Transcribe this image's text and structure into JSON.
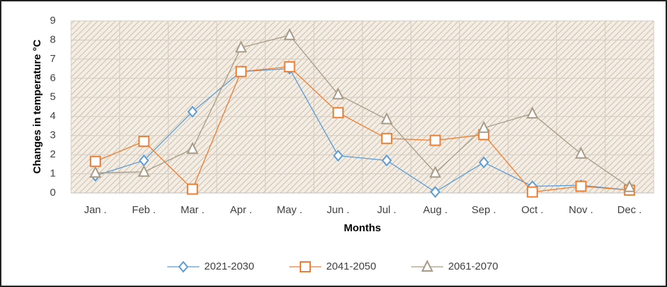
{
  "chart_data": {
    "type": "line",
    "x_label": "Months",
    "y_label": "Changes in temperature °C",
    "categories": [
      "Jan .",
      "Feb .",
      "Mar .",
      "Apr .",
      "May .",
      "Jun .",
      "Jul .",
      "Aug .",
      "Sep .",
      "Oct .",
      "Nov .",
      "Dec ."
    ],
    "series": [
      {
        "name": "2021-2030",
        "color": "#5b9bd5",
        "marker": "diamond",
        "values": [
          0.9,
          1.7,
          4.25,
          6.35,
          6.5,
          1.95,
          1.7,
          0.05,
          1.6,
          0.35,
          0.4,
          0.15
        ]
      },
      {
        "name": "2041-2050",
        "color": "#ed7d31",
        "marker": "square",
        "values": [
          1.65,
          2.7,
          0.2,
          6.35,
          6.6,
          4.2,
          2.85,
          2.75,
          3.05,
          0.05,
          0.35,
          0.15
        ]
      },
      {
        "name": "2061-2070",
        "color": "#a89b85",
        "marker": "triangle",
        "values": [
          1.05,
          1.1,
          2.3,
          7.6,
          8.25,
          5.15,
          3.85,
          1.05,
          3.4,
          4.15,
          2.05,
          0.3
        ]
      }
    ],
    "ylim": [
      0,
      9
    ],
    "yticks": [
      0,
      1,
      2,
      3,
      4,
      5,
      6,
      7,
      8,
      9
    ],
    "grid": true,
    "legend": "bottom"
  }
}
